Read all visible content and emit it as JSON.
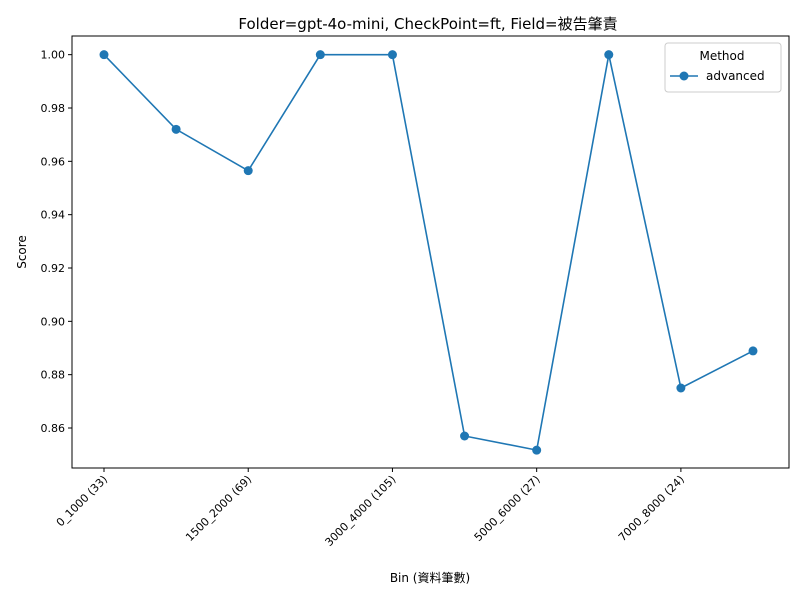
{
  "chart_data": {
    "type": "line",
    "title": "Folder=gpt-4o-mini, CheckPoint=ft, Field=被告肇責",
    "xlabel": "Bin (資料筆數)",
    "ylabel": "Score",
    "categories": [
      "0_1000 (33)",
      "",
      "1500_2000 (69)",
      "",
      "3000_4000 (105)",
      "",
      "5000_6000 (27)",
      "",
      "7000_8000 (24)",
      ""
    ],
    "x_tick_labels": [
      "0_1000 (33)",
      "1500_2000 (69)",
      "3000_4000 (105)",
      "5000_6000 (27)",
      "7000_8000 (24)"
    ],
    "x_tick_indices": [
      0,
      2,
      4,
      6,
      8
    ],
    "ylim": [
      0.845,
      1.007
    ],
    "y_ticks": [
      0.86,
      0.88,
      0.9,
      0.92,
      0.94,
      0.96,
      0.98,
      1.0
    ],
    "y_tick_labels": [
      "0.86",
      "0.88",
      "0.90",
      "0.92",
      "0.94",
      "0.96",
      "0.98",
      "1.00"
    ],
    "series": [
      {
        "name": "advanced",
        "color": "#1f77b4",
        "marker": "circle",
        "values": [
          1.0,
          0.972,
          0.9565,
          1.0,
          1.0,
          0.857,
          0.8517,
          1.0,
          0.875,
          0.8889
        ]
      }
    ],
    "legend": {
      "title": "Method",
      "placement": "top-right"
    },
    "grid": false
  }
}
